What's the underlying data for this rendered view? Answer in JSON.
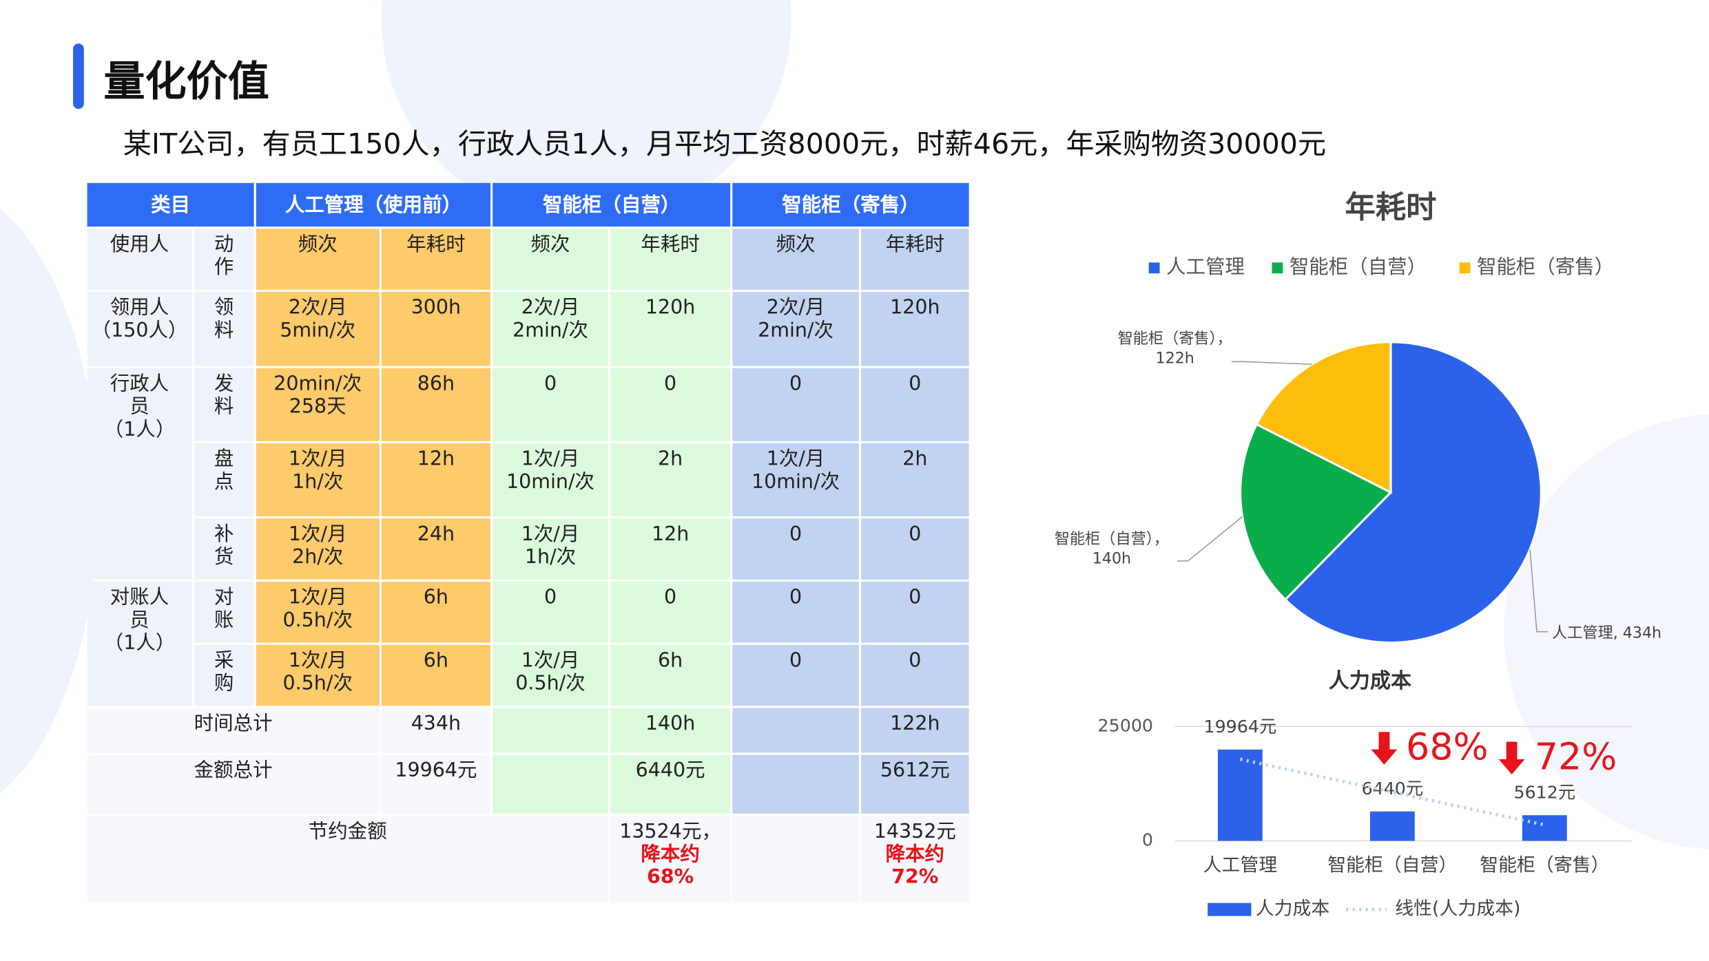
{
  "header": {
    "title": "量化价值",
    "subtitle": "某IT公司，有员工150人，行政人员1人，月平均工资8000元，时薪46元，年采购物资30000元"
  },
  "table": {
    "header": [
      "类目",
      "人工管理（使用前）",
      "智能柜（自营）",
      "智能柜（寄售）"
    ],
    "subheader": [
      "使用人",
      "动\n作",
      "频次",
      "年耗时",
      "频次",
      "年耗时",
      "频次",
      "年耗时"
    ],
    "rows": [
      [
        "领用人\n（150人）",
        "领\n料",
        "2次/月\n5min/次",
        "300h",
        "2次/月\n2min/次",
        "120h",
        "2次/月\n2min/次",
        "120h"
      ],
      [
        "行政人\n员\n（1人）",
        "发\n料",
        "20min/次\n258天",
        "86h",
        "0",
        "0",
        "0",
        "0"
      ],
      [
        "盘\n点",
        "1次/月\n1h/次",
        "12h",
        "1次/月\n10min/次",
        "2h",
        "1次/月\n10min/次",
        "2h"
      ],
      [
        "补\n货",
        "1次/月\n2h/次",
        "24h",
        "1次/月\n1h/次",
        "12h",
        "0",
        "0"
      ],
      [
        "对账人\n员\n（1人）",
        "对\n账",
        "1次/月\n0.5h/次",
        "6h",
        "0",
        "0",
        "0",
        "0"
      ],
      [
        "采\n购",
        "1次/月\n0.5h/次",
        "6h",
        "1次/月\n0.5h/次",
        "6h",
        "0",
        "0"
      ]
    ],
    "totals": [
      {
        "label": "时间总计",
        "values": [
          "434h",
          "140h",
          "122h"
        ]
      },
      {
        "label": "金额总计",
        "values": [
          "19964元",
          "6440元",
          "5612元"
        ]
      }
    ],
    "savings": {
      "label": "节约金额",
      "items": [
        {
          "amount": "13524元，",
          "note": "降本约\n68%"
        },
        {
          "amount": "14352元",
          "note": "降本约\n72%"
        }
      ]
    }
  },
  "chart_data": [
    {
      "type": "pie",
      "title": "年耗时",
      "categories": [
        "人工管理",
        "智能柜（自营）",
        "智能柜（寄售）"
      ],
      "values": [
        434,
        140,
        122
      ],
      "value_labels": [
        [
          "人工管理, 434h"
        ],
        [
          "智能柜（自营），",
          "140h"
        ],
        [
          "智能柜（寄售），",
          "122h"
        ]
      ],
      "colors": [
        "#2c62ea",
        "#0bac4b",
        "#fdbd0c"
      ],
      "legend": "top"
    },
    {
      "type": "bar",
      "title": "人力成本",
      "categories": [
        "人工管理",
        "智能柜（自营）",
        "智能柜（寄售）"
      ],
      "series": [
        {
          "name": "人力成本",
          "color": "#2c62ea",
          "values": [
            19964,
            6440,
            5612
          ],
          "value_labels": [
            "19964元",
            "6440元",
            "5612元"
          ]
        }
      ],
      "trendline": {
        "name": "线性(人力成本)",
        "color": "#bcd0f0"
      },
      "annotations": [
        "68%",
        "72%"
      ],
      "ylim": [
        0,
        25000
      ],
      "yticks": [
        0,
        25000
      ],
      "grid": true,
      "legend": "bottom"
    }
  ]
}
